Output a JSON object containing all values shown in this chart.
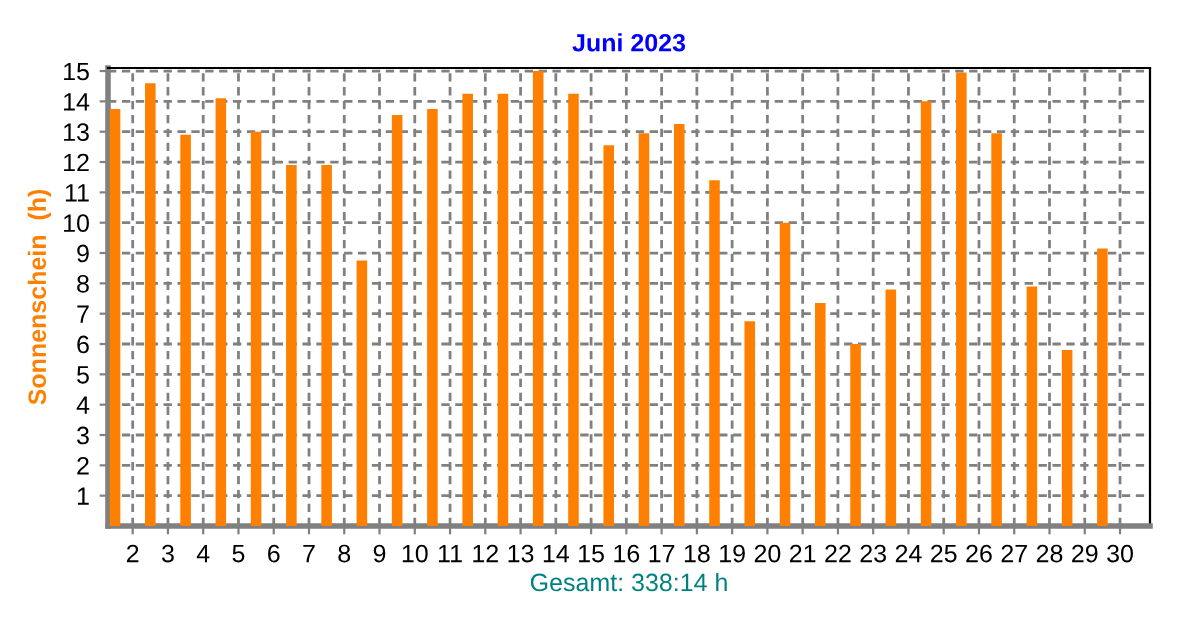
{
  "chart_data": {
    "type": "bar",
    "title": "Juni 2023",
    "ylabel": "Sonnenschein  (h)",
    "xlabel": "Gesamt: 338:14 h",
    "x": [
      1.5,
      2.5,
      3.5,
      4.5,
      5.5,
      6.5,
      7.5,
      8.5,
      9.5,
      10.5,
      11.5,
      12.5,
      13.5,
      14.5,
      15.5,
      16.5,
      17.5,
      18.5,
      19.5,
      20.5,
      21.5,
      22.5,
      23.5,
      24.5,
      25.5,
      26.5,
      27.5,
      28.5,
      29.5,
      30.5
    ],
    "values": [
      13.75,
      14.6,
      12.9,
      14.1,
      13.0,
      11.9,
      11.9,
      8.75,
      13.55,
      13.75,
      14.25,
      14.25,
      15.0,
      14.25,
      12.55,
      12.95,
      13.25,
      11.4,
      6.75,
      10.0,
      7.35,
      6.0,
      7.8,
      14.0,
      14.95,
      12.95,
      7.9,
      5.8,
      9.15,
      0
    ],
    "color": "#ff8000",
    "xlim": [
      1.3,
      30.85
    ],
    "xticks": [
      2,
      3,
      4,
      5,
      6,
      7,
      8,
      9,
      10,
      11,
      12,
      13,
      14,
      15,
      16,
      17,
      18,
      19,
      20,
      21,
      22,
      23,
      24,
      25,
      26,
      27,
      28,
      29,
      30
    ],
    "ylim": [
      0,
      15.1
    ],
    "yticks": [
      1,
      2,
      3,
      4,
      5,
      6,
      7,
      8,
      9,
      10,
      11,
      12,
      13,
      14,
      15
    ],
    "grid": true,
    "legend": false
  }
}
